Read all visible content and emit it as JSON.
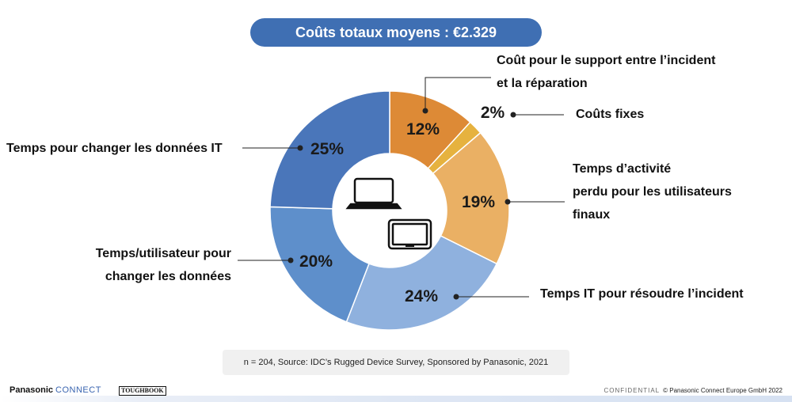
{
  "title": "Coûts totaux moyens : €2.329",
  "chart_data": {
    "type": "pie",
    "title": "Coûts totaux moyens : €2.329",
    "slices": [
      {
        "label": "Coût pour le support entre l’incident et la réparation",
        "value": 12,
        "value_label": "12%",
        "color": "#dd8a36"
      },
      {
        "label": "Coûts fixes",
        "value": 2,
        "value_label": "2%",
        "color": "#e6b23f"
      },
      {
        "label": "Temps d’activité perdu pour les utilisateurs finaux",
        "value": 19,
        "value_label": "19%",
        "color": "#eab064"
      },
      {
        "label": "Temps IT pour résoudre l’incident",
        "value": 24,
        "value_label": "24%",
        "color": "#8fb1de"
      },
      {
        "label": "Temps/utilisateur pour changer les données",
        "value": 20,
        "value_label": "20%",
        "color": "#5e8fcb"
      },
      {
        "label": "Temps pour changer les données IT",
        "value": 25,
        "value_label": "25%",
        "color": "#4a76ba"
      }
    ]
  },
  "labels": {
    "support": [
      "Coût pour le support entre l’incident",
      "et la réparation"
    ],
    "fixed": [
      "Coûts fixes"
    ],
    "lost_time": [
      "Temps d’activité",
      "perdu pour les utilisateurs",
      "finaux"
    ],
    "it_resolve": [
      "Temps IT pour résoudre l’incident"
    ],
    "user_change": [
      "Temps/utilisateur pour",
      "changer les données"
    ],
    "it_change": [
      "Temps pour changer les données IT"
    ]
  },
  "source": "n = 204, Source: IDC’s Rugged Device Survey, Sponsored by Panasonic, 2021",
  "footer": {
    "brand": "Panasonic",
    "brand_sub": "CONNECT",
    "toughbook": "TOUGHBOOK",
    "confidential": "CONFIDENTIAL",
    "copyright": "© Panasonic Connect Europe GmbH 2022"
  },
  "icons": [
    "laptop-icon",
    "tablet-icon"
  ]
}
